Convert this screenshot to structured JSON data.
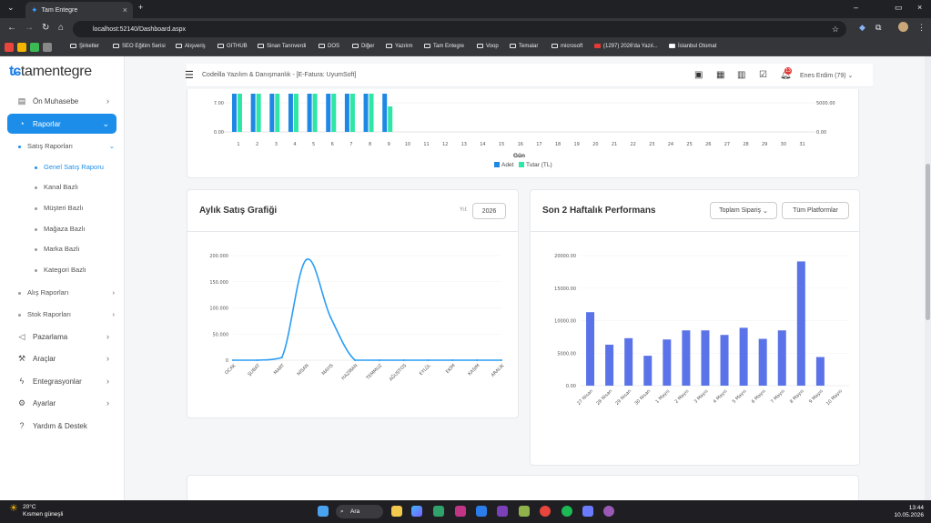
{
  "browser": {
    "tab_title": "Tam Entegre",
    "url": "localhost:52140/Dashboard.aspx",
    "bookmarks": [
      "Şirketler",
      "SEO Eğitim Serisi",
      "Alışveriş",
      "GITHUB",
      "Sinan Tanrıverdi",
      "DOS",
      "Diğer",
      "Yazılım",
      "Tam Entegre",
      "Voop",
      "Temalar",
      "microsoft",
      "(1297) 2026'da Yazıl...",
      "İstanbul Otomat"
    ]
  },
  "logo": "tamentegre",
  "sidebar": {
    "items": [
      {
        "label": "Ön Muhasebe",
        "icon": "wallet-icon"
      },
      {
        "label": "Raporlar",
        "icon": "chart-pie-icon"
      },
      {
        "label": "Pazarlama",
        "icon": "megaphone-icon"
      },
      {
        "label": "Araçlar",
        "icon": "wrench-icon"
      },
      {
        "label": "Entegrasyonlar",
        "icon": "plug-icon"
      },
      {
        "label": "Ayarlar",
        "icon": "gear-icon"
      },
      {
        "label": "Yardım & Destek",
        "icon": "help-icon"
      }
    ],
    "sub_reports": [
      "Satış Raporları",
      "Alış Raporları",
      "Stok Raporları"
    ],
    "sales_reports": [
      "Genel Satış Raporu",
      "Kanal Bazlı",
      "Müşteri Bazlı",
      "Mağaza Bazlı",
      "Marka Bazlı",
      "Kategori Bazlı"
    ]
  },
  "header": {
    "breadcrumb": "Codeilla Yazılım & Danışmanlık - [E-Fatura: UyumSoft]",
    "notification_count": "13",
    "user": "Enes Erdim (79)"
  },
  "daily_chart": {
    "xlabel": "Gün",
    "legend": [
      "Adet",
      "Tutar (TL)"
    ],
    "colors": {
      "adet": "#1e88e5",
      "tutar": "#2ee6a6"
    },
    "left_ticks": [
      "7.00",
      "0.00"
    ],
    "right_ticks": [
      "5000.00",
      "0.00"
    ],
    "days": [
      "1",
      "2",
      "3",
      "4",
      "5",
      "6",
      "7",
      "8",
      "9",
      "10",
      "11",
      "12",
      "13",
      "14",
      "15",
      "16",
      "17",
      "18",
      "19",
      "20",
      "21",
      "22",
      "23",
      "24",
      "25",
      "26",
      "27",
      "28",
      "29",
      "30",
      "31"
    ]
  },
  "monthly_chart": {
    "title": "Aylık Satış Grafiği",
    "year_label": "Yıl:",
    "year": "2026",
    "color": "#2a9df4",
    "chart_data": {
      "type": "line",
      "categories": [
        "OCAK",
        "ŞUBAT",
        "MART",
        "NİSAN",
        "MAYIS",
        "HAZİRAN",
        "TEMMUZ",
        "AĞUSTOS",
        "EYLÜL",
        "EKİM",
        "KASIM",
        "ARALIK"
      ],
      "values": [
        0,
        0,
        5000,
        192000,
        82000,
        0,
        0,
        0,
        0,
        0,
        0,
        0
      ],
      "ylim": [
        0,
        200000
      ],
      "yticks": [
        "0",
        "50.000",
        "100.000",
        "150.000",
        "200.000"
      ]
    }
  },
  "weekly_chart": {
    "title": "Son 2 Haftalık Performans",
    "filter1": "Toplam Sipariş",
    "filter2": "Tüm Platformlar",
    "color": "#5b73e8",
    "chart_data": {
      "type": "bar",
      "categories": [
        "27 Nisan",
        "28 Nisan",
        "29 Nisan",
        "30 Nisan",
        "1 Mayıs",
        "2 Mayıs",
        "3 Mayıs",
        "4 Mayıs",
        "5 Mayıs",
        "6 Mayıs",
        "7 Mayıs",
        "8 Mayıs",
        "9 Mayıs",
        "10 Mayıs"
      ],
      "values": [
        11300,
        6300,
        7300,
        4600,
        7100,
        8500,
        8500,
        7800,
        8900,
        7200,
        8500,
        19100,
        4400,
        0
      ],
      "ylim": [
        0,
        20000
      ],
      "yticks": [
        "0.00",
        "5000.00",
        "10000.00",
        "15000.00",
        "20000.00"
      ]
    }
  },
  "taskbar": {
    "temp": "20°C",
    "weather": "Kısmen güneşli",
    "search": "Ara",
    "time": "13:44",
    "date": "10.05.2026"
  }
}
